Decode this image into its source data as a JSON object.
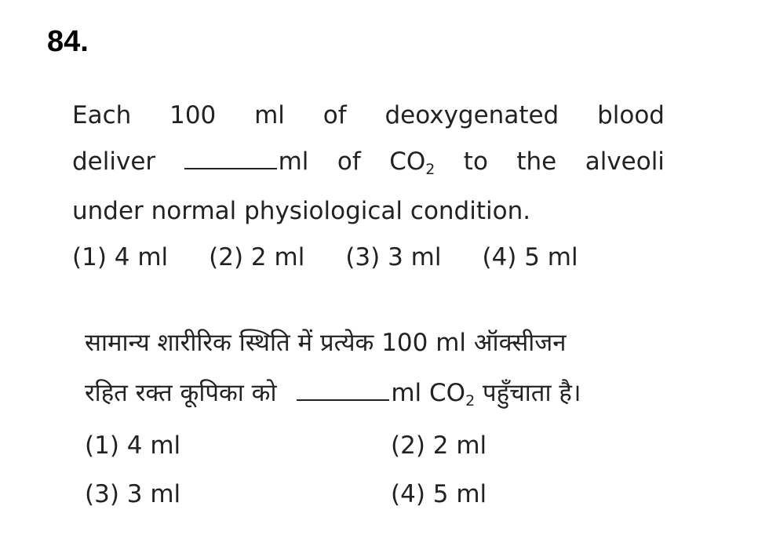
{
  "question_number": "84.",
  "english": {
    "line1": [
      "Each",
      "100",
      "ml",
      "of",
      "deoxygenated",
      "blood"
    ],
    "line2_before_blank": "deliver",
    "line2_after_blank": "ml",
    "line2_of": "of",
    "line2_co": "CO",
    "line2_sub": "2",
    "line2_rest": [
      "to",
      "the",
      "alveoli"
    ],
    "line3": "under normal physiological condition.",
    "options": [
      "(1) 4 ml",
      "(2) 2 ml",
      "(3) 3 ml",
      "(4) 5 ml"
    ]
  },
  "hindi": {
    "line1": "सामान्य शारीरिक स्थिति में प्रत्येक 100 ml ऑक्सीजन",
    "line2_before_blank": "रहित रक्त कूपिका को",
    "line2_after_blank": "ml CO",
    "line2_sub": "2",
    "line2_rest": " पहुँचाता है।",
    "options": [
      "(1) 4 ml",
      "(2) 2 ml",
      "(3) 3 ml",
      "(4) 5 ml"
    ]
  }
}
